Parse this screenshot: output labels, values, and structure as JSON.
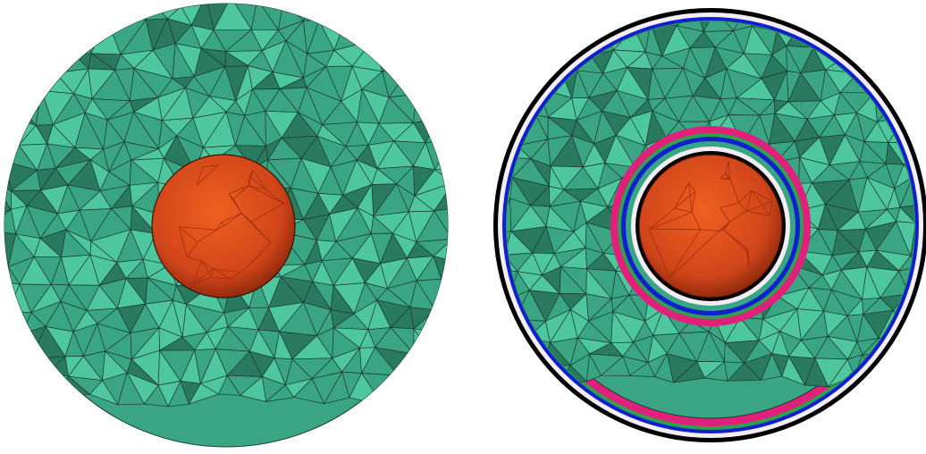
{
  "figure": {
    "panels": [
      {
        "id": "left",
        "label": "",
        "layers": []
      },
      {
        "id": "right",
        "label": "",
        "layers": [
          "pink",
          "green",
          "blue",
          "white",
          "black"
        ]
      }
    ]
  },
  "colors": {
    "mesh": "#3aa583",
    "mesh_dark": "#2a7a60",
    "mesh_light": "#4fc79e",
    "edge": "#1b3a30",
    "sphere": "#e0501e",
    "sphere_dark": "#9e2e0d",
    "pink": "#e0207a",
    "green": "#2fa050",
    "blue": "#1020d0",
    "white": "#f4eef4",
    "black": "#000000"
  }
}
